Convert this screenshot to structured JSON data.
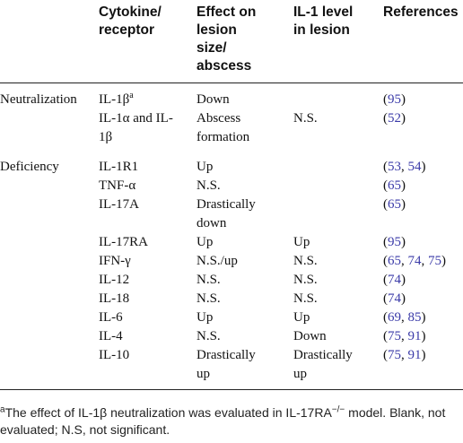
{
  "table": {
    "header": [
      null,
      {
        "lines": [
          "Cytokine/",
          "receptor"
        ]
      },
      {
        "lines": [
          "Effect on",
          "lesion",
          "size/",
          "abscess"
        ]
      },
      {
        "lines": [
          "IL-1 level",
          "in lesion"
        ]
      },
      {
        "lines": [
          "References"
        ]
      }
    ],
    "rows": [
      [
        {
          "lines": [
            "Neutralization"
          ]
        },
        {
          "lines": [
            "IL-1β"
          ],
          "sup": "a"
        },
        {
          "lines": [
            "Down"
          ]
        },
        null,
        {
          "parts": [
            "(",
            "95",
            ")"
          ]
        }
      ],
      [
        null,
        {
          "lines": [
            "IL-1α and IL-",
            "1β"
          ]
        },
        {
          "lines": [
            "Abscess",
            "formation"
          ]
        },
        {
          "lines": [
            "N.S."
          ]
        },
        {
          "parts": [
            "(",
            "52",
            ")"
          ]
        }
      ],
      [
        {
          "lines": [
            "Deficiency"
          ]
        },
        {
          "lines": [
            "IL-1R1"
          ]
        },
        {
          "lines": [
            "Up"
          ]
        },
        null,
        {
          "parts": [
            "(",
            "53",
            ", ",
            "54",
            ")"
          ]
        }
      ],
      [
        null,
        {
          "lines": [
            "TNF-α"
          ]
        },
        {
          "lines": [
            "N.S."
          ]
        },
        null,
        {
          "parts": [
            "(",
            "65",
            ")"
          ]
        }
      ],
      [
        null,
        {
          "lines": [
            "IL-17A"
          ]
        },
        {
          "lines": [
            "Drastically",
            "down"
          ]
        },
        null,
        {
          "parts": [
            "(",
            "65",
            ")"
          ]
        }
      ],
      [
        null,
        {
          "lines": [
            "IL-17RA"
          ]
        },
        {
          "lines": [
            "Up"
          ]
        },
        {
          "lines": [
            "Up"
          ]
        },
        {
          "parts": [
            "(",
            "95",
            ")"
          ]
        }
      ],
      [
        null,
        {
          "lines": [
            "IFN-γ"
          ]
        },
        {
          "lines": [
            "N.S./up"
          ]
        },
        {
          "lines": [
            "N.S."
          ]
        },
        {
          "parts": [
            "(",
            "65",
            ", ",
            "74",
            ", ",
            "75",
            ")"
          ]
        }
      ],
      [
        null,
        {
          "lines": [
            "IL-12"
          ]
        },
        {
          "lines": [
            "N.S."
          ]
        },
        {
          "lines": [
            "N.S."
          ]
        },
        {
          "parts": [
            "(",
            "74",
            ")"
          ]
        }
      ],
      [
        null,
        {
          "lines": [
            "IL-18"
          ]
        },
        {
          "lines": [
            "N.S."
          ]
        },
        {
          "lines": [
            "N.S."
          ]
        },
        {
          "parts": [
            "(",
            "74",
            ")"
          ]
        }
      ],
      [
        null,
        {
          "lines": [
            "IL-6"
          ]
        },
        {
          "lines": [
            "Up"
          ]
        },
        {
          "lines": [
            "Up"
          ]
        },
        {
          "parts": [
            "(",
            "69",
            ", ",
            "85",
            ")"
          ]
        }
      ],
      [
        null,
        {
          "lines": [
            "IL-4"
          ]
        },
        {
          "lines": [
            "N.S."
          ]
        },
        {
          "lines": [
            "Down"
          ]
        },
        {
          "parts": [
            "(",
            "75",
            ", ",
            "91",
            ")"
          ]
        }
      ],
      [
        null,
        {
          "lines": [
            "IL-10"
          ]
        },
        {
          "lines": [
            "Drastically",
            "up"
          ]
        },
        {
          "lines": [
            "Drastically",
            "up"
          ]
        },
        {
          "parts": [
            "(",
            "75",
            ", ",
            "91",
            ")"
          ]
        }
      ]
    ],
    "footnote": [
      {
        "sup": "a"
      },
      {
        "text": "The effect of IL-1β neutralization was evaluated in IL-17RA"
      },
      {
        "sup": "−/−"
      },
      {
        "text": " model. Blank, not evaluated; N.S, not significant."
      }
    ]
  }
}
